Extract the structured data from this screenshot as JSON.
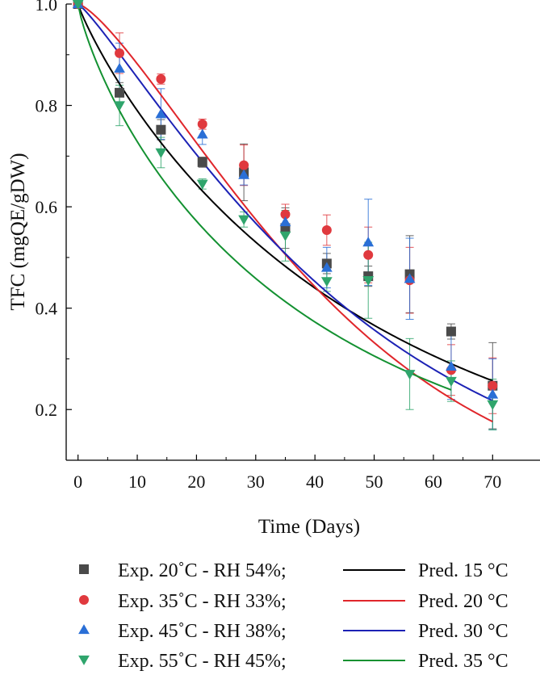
{
  "chart_data": {
    "type": "scatter",
    "xlabel": "Time (Days)",
    "ylabel": "TFC (mgQE/gDW)",
    "xlim": [
      -2,
      78
    ],
    "ylim": [
      0.1,
      1.0
    ],
    "xticks": [
      "0",
      "10",
      "20",
      "30",
      "40",
      "50",
      "60",
      "70"
    ],
    "xtick_values": [
      0,
      10,
      20,
      30,
      40,
      50,
      60,
      70
    ],
    "yticks": [
      "0.2",
      "0.4",
      "0.6",
      "0.8",
      "1.0"
    ],
    "ytick_values": [
      0.2,
      0.4,
      0.6,
      0.8,
      1.0
    ],
    "legend_position": "bottom",
    "series": [
      {
        "name": "Exp. 20˚C - RH 54%;",
        "kind": "scatter",
        "marker": "square",
        "color": "#4a4a4a",
        "x": [
          0,
          7,
          14,
          21,
          28,
          35,
          42,
          49,
          56,
          63,
          70
        ],
        "y": [
          1.0,
          0.825,
          0.752,
          0.688,
          0.668,
          0.558,
          0.488,
          0.463,
          0.467,
          0.354,
          0.247
        ],
        "err": [
          0,
          0.02,
          0.02,
          0.01,
          0.056,
          0.04,
          0.02,
          0.02,
          0.076,
          0.015,
          0.085
        ]
      },
      {
        "name": "Exp. 35˚C - RH 33%;",
        "kind": "scatter",
        "marker": "circle",
        "color": "#e0393e",
        "x": [
          0,
          7,
          14,
          21,
          28,
          35,
          42,
          49,
          56,
          63,
          70
        ],
        "y": [
          1.0,
          0.903,
          0.852,
          0.763,
          0.682,
          0.585,
          0.554,
          0.505,
          0.455,
          0.278,
          0.247
        ],
        "err": [
          0,
          0.04,
          0.01,
          0.01,
          0.04,
          0.02,
          0.03,
          0.055,
          0.065,
          0.05,
          0.055
        ]
      },
      {
        "name": "Exp. 45˚C - RH 38%;",
        "kind": "scatter",
        "marker": "triangle-up",
        "color": "#2a6fd6",
        "x": [
          0,
          7,
          14,
          21,
          28,
          35,
          42,
          49,
          56,
          63,
          70
        ],
        "y": [
          1.0,
          0.873,
          0.783,
          0.743,
          0.663,
          0.57,
          0.48,
          0.53,
          0.458,
          0.285,
          0.23
        ],
        "err": [
          0,
          0.05,
          0.05,
          0.02,
          0.02,
          0.02,
          0.04,
          0.085,
          0.08,
          0.065,
          0.07
        ]
      },
      {
        "name": "Exp. 55˚C - RH 45%;",
        "kind": "scatter",
        "marker": "triangle-down",
        "color": "#2fa56c",
        "x": [
          0,
          7,
          14,
          21,
          28,
          35,
          42,
          49,
          56,
          63,
          70
        ],
        "y": [
          1.0,
          0.8,
          0.707,
          0.645,
          0.575,
          0.543,
          0.453,
          0.455,
          0.27,
          0.256,
          0.21
        ],
        "err": [
          0,
          0.04,
          0.03,
          0.01,
          0.015,
          0.05,
          0.02,
          0.075,
          0.07,
          0.04,
          0.05
        ]
      },
      {
        "name": "Pred. 15 °C",
        "kind": "line",
        "color": "#000000",
        "x_end": 70,
        "k": 0.0201,
        "n": 0.9
      },
      {
        "name": "Pred. 20 °C",
        "kind": "line",
        "color": "#e0262b",
        "x_end": 70,
        "k": 0.0215,
        "n": 1.35
      },
      {
        "name": "Pred. 30 °C",
        "kind": "line",
        "color": "#1c22b5",
        "x_end": 70,
        "k": 0.0205,
        "n": 1.17
      },
      {
        "name": "Pred. 35 °C",
        "kind": "line",
        "color": "#139131",
        "x_end": 63,
        "k": 0.0246,
        "n": 0.82
      }
    ]
  }
}
